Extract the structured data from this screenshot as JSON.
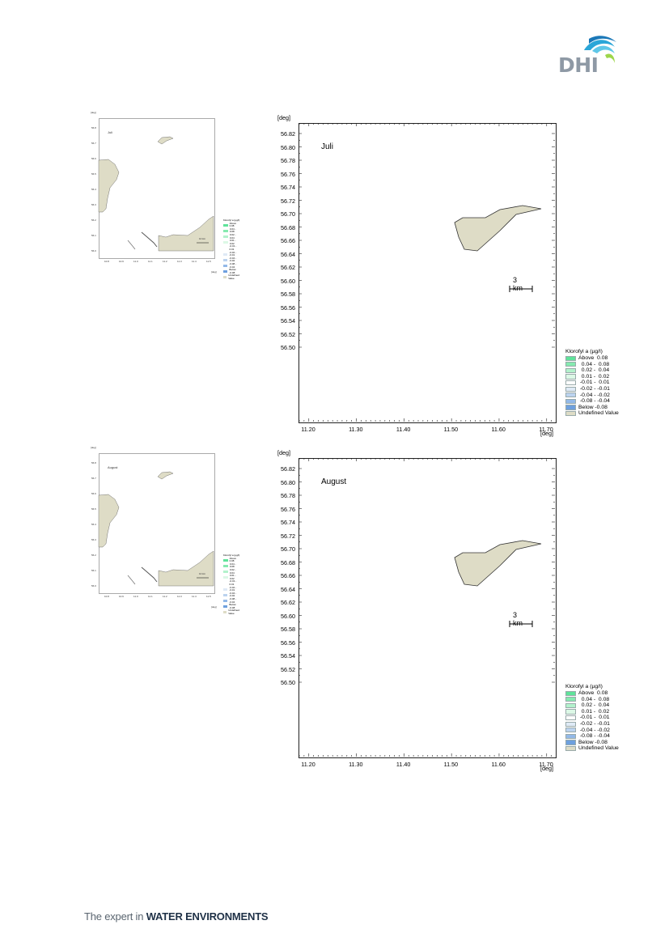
{
  "header": {
    "logo_text": "DHI"
  },
  "footer": {
    "prefix": "The expert in ",
    "emphasis": "WATER ENVIRONMENTS"
  },
  "axes": {
    "unit": "[deg]",
    "y_ticks": [
      "56.82",
      "56.80",
      "56.78",
      "56.76",
      "56.74",
      "56.72",
      "56.70",
      "56.68",
      "56.66",
      "56.64",
      "56.62",
      "56.60",
      "56.58",
      "56.56",
      "56.54",
      "56.52",
      "56.50"
    ],
    "x_ticks": [
      "11.20",
      "11.30",
      "11.40",
      "11.50",
      "11.60",
      "11.70"
    ],
    "thumb_y_ticks": [
      "56.8",
      "56.7",
      "56.6",
      "56.5",
      "56.4",
      "56.3",
      "56.2",
      "56.1",
      "56.0"
    ],
    "thumb_x_ticks": [
      "10.8",
      "10.9",
      "11.0",
      "11.1",
      "11.2",
      "11.3",
      "11.4",
      "11.5"
    ]
  },
  "scale_bar": {
    "label": "3 km",
    "thumb_label": "10 km"
  },
  "legend": {
    "title": "Klorofyl a (µg/l)",
    "items": [
      {
        "label": "Above  0.08",
        "color": "#5fe39a"
      },
      {
        "label": "  0.04 -  0.08",
        "color": "#86eab0"
      },
      {
        "label": "  0.02 -  0.04",
        "color": "#b3f2cc"
      },
      {
        "label": "  0.01 -  0.02",
        "color": "#dcf8e6"
      },
      {
        "label": " -0.01 -  0.01",
        "color": "#ffffff"
      },
      {
        "label": " -0.02 - -0.01",
        "color": "#dfeaf6"
      },
      {
        "label": " -0.04 - -0.02",
        "color": "#bcd3ef"
      },
      {
        "label": " -0.08 - -0.04",
        "color": "#93b9e8"
      },
      {
        "label": "Below -0.08",
        "color": "#6ea0de"
      },
      {
        "label": "Undefined Value",
        "color": "#dedcc6"
      }
    ]
  },
  "land_color": "#dedcc6",
  "maps": [
    {
      "month": "Juli"
    },
    {
      "month": "August"
    }
  ]
}
